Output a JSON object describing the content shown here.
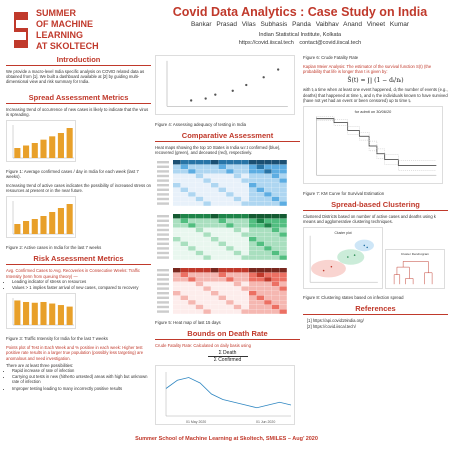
{
  "header": {
    "logo_title": "SUMMER\nOF MACHINE\nLEARNING\nAT SKOLTECH",
    "title": "Covid Data Analytics : Case Study on India",
    "authors": "Bankar Prasad Vilas   Subhasis Panda   Vaibhav Anand   Vineet Kumar",
    "affiliation": "Indian Statistical Institute, Kolkata",
    "url1": "https://covid.iiscal.tech",
    "url2": "contact@covid.iiscal.tech"
  },
  "intro": {
    "title": "Introduction",
    "text": "We provide a macro-level India specific analysis on COVID related data as obtained from [1]. We built a dashboard available at [2] by guiding multi-dimensional view and risk summary for India."
  },
  "spread": {
    "title": "Spread Assessment Metrics",
    "text1": "Increasing trend of occurrence of new cases is likely to indicate that the virus is spreading.",
    "fig1_caption": "Figure 1: Average confirmed cases / day in India for each week (last 7 weeks).",
    "text2": "Increasing trend of active cases indicates the possibility of increased stress on resources at present or in the near future.",
    "fig2_caption": "Figure 2: Active cases in India for the last 7 weeks"
  },
  "risk": {
    "title": "Risk Assessment Metrics",
    "text1": "Avg. Confirmed Cases to Avg. Recoveries in Consecutive Weeks: Traffic Intensity (term from queuing theory) —",
    "bullets": [
      "Leading indicator of stress on resources",
      "Values > 1 implies faster arrival of new cases, compared to recovery"
    ],
    "fig3_caption": "Figure 3: Traffic Intensity for India for the last 7 weeks",
    "text2": "Points plot of Test in Each Week and % positive in each week: Higher test positive rate results in a larger true population (possibly less targeting) are anomalous and need investigation.",
    "text3": "There are at least three possibilities:",
    "bullets2": [
      "Rapid increase of rate of infection",
      "Carrying out tests in new (hitherto untested) areas with high but unknown rate of infection",
      "Improper testing leading to many incorrectly positive results"
    ]
  },
  "col2": {
    "fig4_caption": "Figure 4: Assessing adequacy of testing in India",
    "comparative_title": "Comparative Assessment",
    "comparative_text": "Heat maps showing the top 10 States in India w.r.t confirmed (blue), recovered (green), and deceased (red), respectively.",
    "fig5_caption": "Figure 5: Heat map of last 15 days",
    "bounds_title": "Bounds on Death Rate",
    "bounds_text": "Crude Fatality Rate: Calculated on daily basis using",
    "formula_num": "Σ Death",
    "formula_den": "Σ Confirmed",
    "date_labels": [
      "01 May 2020",
      "01 Jun 2020"
    ]
  },
  "col3": {
    "fig6_caption": "Figure 6: Crude Fatality Rate",
    "km_text": "Kaplan Meier Analysis: The estimator of the survival function S(t) (the probability that life is longer than t is given by:",
    "km_formula": "Ŝ(t) = ∏ (1 − dᵢ/nᵢ)",
    "km_text2": "with tᵢ a time when at least one event happened, dᵢ the number of events (e.g., deaths) that happened at time tᵢ, and nᵢ the individuals known to have survived (have not yet had an event or been censored) up to time tᵢ.",
    "km_chart_title": "for admit on 30/06/20",
    "fig7_caption": "Figure 7: KM Curve for Survival Estimation",
    "clustering_title": "Spread-based Clustering",
    "clustering_text": "Clustered Districts based on number of active cases and deaths using k means and agglomerative clustering techniques.",
    "cluster_plot_title": "Cluster plot",
    "dendro_title": "Cluster Dendrogram",
    "fig8_caption": "Figure 8: Clustering states based on infection spread",
    "refs_title": "References",
    "refs": [
      "[1]  https://api.covid19india.org/",
      "[2]  https://covid.iiscal.tech/"
    ]
  },
  "footer": "Summer School of Machine Learning at Skoltech, SMILES – Aug’ 2020",
  "chart_data": [
    {
      "type": "bar",
      "title": "",
      "categories": [
        "W1",
        "W2",
        "W3",
        "W4",
        "W5",
        "W6",
        "W7"
      ],
      "values": [
        12,
        15,
        18,
        22,
        26,
        30,
        36
      ],
      "color": "#e8a02a"
    },
    {
      "type": "bar",
      "title": "",
      "categories": [
        "W1",
        "W2",
        "W3",
        "W4",
        "W5",
        "W6",
        "W7"
      ],
      "values": [
        10,
        13,
        15,
        18,
        22,
        26,
        30
      ],
      "color": "#e8a02a"
    },
    {
      "type": "bar",
      "title": "",
      "categories": [
        "W1",
        "W2",
        "W3",
        "W4",
        "W5",
        "W6",
        "W7"
      ],
      "values": [
        1.6,
        1.5,
        1.45,
        1.5,
        1.4,
        1.3,
        1.2
      ],
      "color": "#e8a02a"
    },
    {
      "type": "line",
      "title": "Crude Fatality Rate",
      "values": [
        3.2,
        3.35,
        3.4,
        3.3,
        3.1,
        3.0,
        2.95,
        2.9,
        2.85,
        2.9,
        2.95,
        2.9
      ]
    }
  ]
}
